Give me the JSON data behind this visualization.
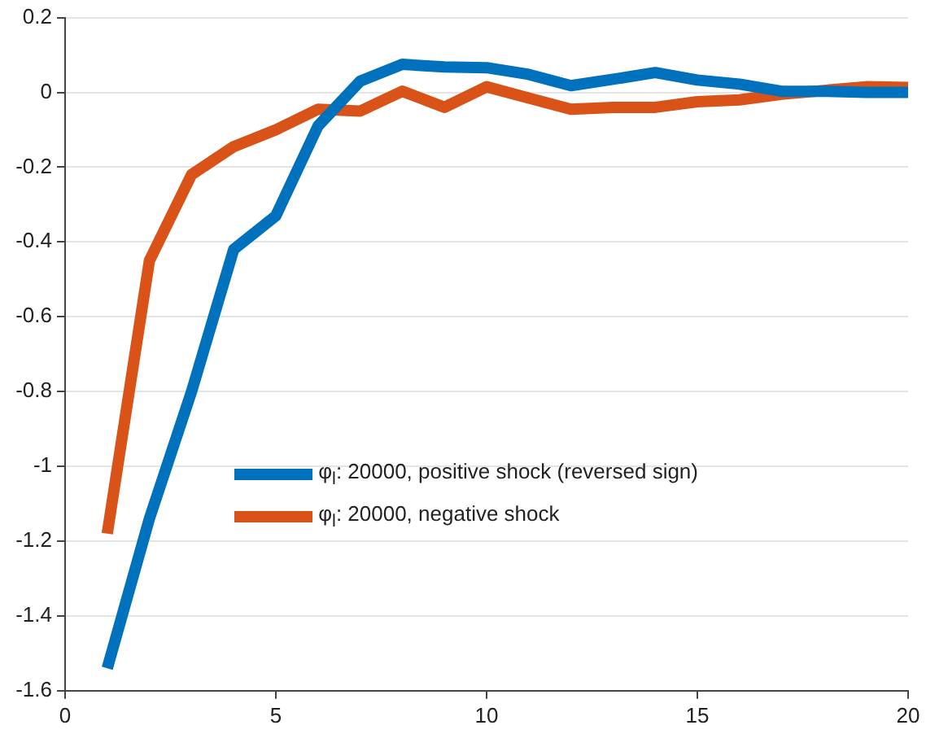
{
  "chart_data": {
    "type": "line",
    "x": [
      1,
      2,
      3,
      4,
      5,
      6,
      7,
      8,
      9,
      10,
      11,
      12,
      13,
      14,
      15,
      16,
      17,
      18,
      19,
      20
    ],
    "series": [
      {
        "name": "φ$_{l}$: 20000, positive shock (reversed sign)",
        "color": "#0072bd",
        "values": [
          -1.54,
          -1.14,
          -0.8,
          -0.42,
          -0.33,
          -0.09,
          0.03,
          0.075,
          0.068,
          0.066,
          0.048,
          0.018,
          0.035,
          0.053,
          0.033,
          0.022,
          0.003,
          0.003,
          0.0,
          0.0
        ]
      },
      {
        "name": "φ$_{l}$: 20000, negative shock",
        "color": "#d95319",
        "values": [
          -1.18,
          -0.45,
          -0.22,
          -0.145,
          -0.1,
          -0.045,
          -0.05,
          0.003,
          -0.04,
          0.015,
          -0.015,
          -0.045,
          -0.04,
          -0.04,
          -0.025,
          -0.02,
          -0.005,
          0.005,
          0.015,
          0.013
        ]
      }
    ],
    "xlim": [
      0,
      20
    ],
    "xticks": [
      0,
      5,
      10,
      15,
      20
    ],
    "ylim": [
      -1.6,
      0.2
    ],
    "yticks": [
      -1.6,
      -1.4,
      -1.2,
      -1,
      -0.8,
      -0.6,
      -0.4,
      -0.2,
      0,
      0.2
    ],
    "grid": "y",
    "legend": "center",
    "marker": "none",
    "line_style": "solid"
  }
}
